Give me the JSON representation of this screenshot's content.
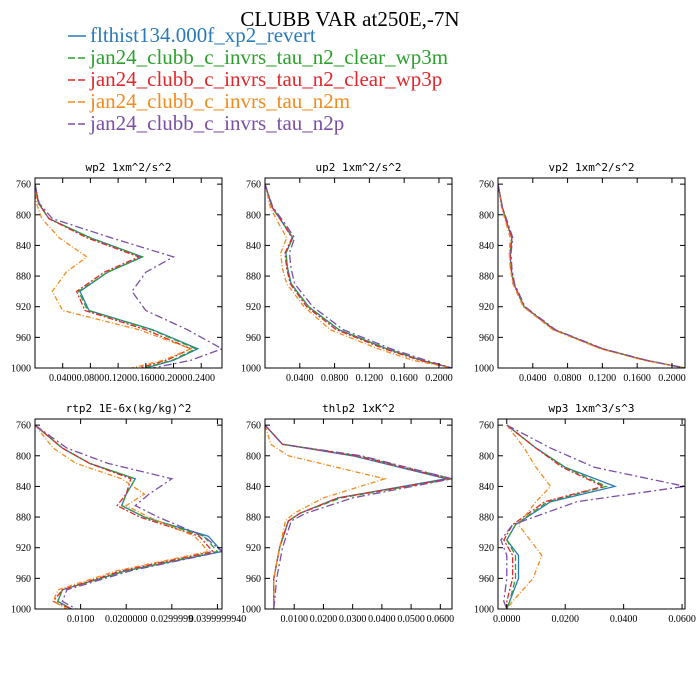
{
  "title": "CLUBB VAR at250E,-7N",
  "legend": [
    {
      "label": "flthist134.000f_xp2_revert",
      "color": "#2a7ab8",
      "dash": ""
    },
    {
      "label": "jan24_clubb_c_invrs_tau_n2_clear_wp3m",
      "color": "#2ca02c",
      "dash": "7,3"
    },
    {
      "label": "jan24_clubb_c_invrs_tau_n2_clear_wp3p",
      "color": "#e0282c",
      "dash": "7,3"
    },
    {
      "label": "jan24_clubb_c_invrs_tau_n2m",
      "color": "#f08c1e",
      "dash": "7,3"
    },
    {
      "label": "jan24_clubb_c_invrs_tau_n2p",
      "color": "#7b4fa6",
      "dash": "7,3"
    }
  ],
  "chart_data": [
    {
      "type": "line",
      "title": "wp2  1xm^2/s^2",
      "xlim": [
        0,
        0.27
      ],
      "ylim": [
        1000,
        752
      ],
      "yticks": [
        760,
        800,
        840,
        880,
        920,
        960,
        1000
      ],
      "xticks": [
        0.04,
        0.08,
        0.12,
        0.16,
        0.2,
        0.24
      ],
      "xticklabels": [
        "0.0400",
        "0.0800",
        "0.1200",
        "0.1600",
        "0.2000",
        "0.2400"
      ],
      "y": [
        760,
        785,
        805,
        830,
        855,
        875,
        900,
        925,
        950,
        975,
        990,
        1000
      ],
      "series": [
        {
          "name": "flthist134.000f_xp2_revert",
          "values": [
            0.0,
            0.005,
            0.02,
            0.08,
            0.155,
            0.105,
            0.065,
            0.078,
            0.17,
            0.235,
            0.2,
            0.16
          ]
        },
        {
          "name": "jan24_clubb_c_invrs_tau_n2_clear_wp3m",
          "values": [
            0.0,
            0.005,
            0.02,
            0.08,
            0.155,
            0.105,
            0.063,
            0.076,
            0.168,
            0.232,
            0.198,
            0.158
          ]
        },
        {
          "name": "jan24_clubb_c_invrs_tau_n2_clear_wp3p",
          "values": [
            0.0,
            0.005,
            0.02,
            0.075,
            0.15,
            0.1,
            0.06,
            0.072,
            0.16,
            0.225,
            0.19,
            0.15
          ]
        },
        {
          "name": "jan24_clubb_c_invrs_tau_n2m",
          "values": [
            0.0,
            0.002,
            0.01,
            0.035,
            0.075,
            0.045,
            0.025,
            0.04,
            0.15,
            0.225,
            0.185,
            0.14
          ]
        },
        {
          "name": "jan24_clubb_c_invrs_tau_n2p",
          "values": [
            0.0,
            0.006,
            0.025,
            0.11,
            0.2,
            0.16,
            0.14,
            0.16,
            0.22,
            0.27,
            0.225,
            0.17
          ]
        }
      ]
    },
    {
      "type": "line",
      "title": "up2  1xm^2/s^2",
      "xlim": [
        0,
        0.215
      ],
      "ylim": [
        1000,
        752
      ],
      "yticks": [
        760,
        800,
        840,
        880,
        920,
        960,
        1000
      ],
      "xticks": [
        0.04,
        0.08,
        0.12,
        0.16,
        0.2
      ],
      "xticklabels": [
        "0.0400",
        "0.0800",
        "0.1200",
        "0.1600",
        "0.2000"
      ],
      "y": [
        760,
        790,
        810,
        830,
        850,
        870,
        890,
        920,
        950,
        975,
        990,
        1000
      ],
      "series": [
        {
          "name": "flthist134.000f_xp2_revert",
          "values": [
            0.0,
            0.008,
            0.02,
            0.032,
            0.024,
            0.026,
            0.03,
            0.05,
            0.085,
            0.14,
            0.18,
            0.215
          ]
        },
        {
          "name": "jan24_clubb_c_invrs_tau_n2_clear_wp3m",
          "values": [
            0.0,
            0.008,
            0.02,
            0.032,
            0.024,
            0.026,
            0.03,
            0.05,
            0.085,
            0.14,
            0.18,
            0.215
          ]
        },
        {
          "name": "jan24_clubb_c_invrs_tau_n2_clear_wp3p",
          "values": [
            0.0,
            0.008,
            0.02,
            0.031,
            0.023,
            0.025,
            0.029,
            0.048,
            0.082,
            0.137,
            0.178,
            0.215
          ]
        },
        {
          "name": "jan24_clubb_c_invrs_tau_n2m",
          "values": [
            0.0,
            0.006,
            0.015,
            0.025,
            0.018,
            0.02,
            0.025,
            0.045,
            0.075,
            0.13,
            0.17,
            0.215
          ]
        },
        {
          "name": "jan24_clubb_c_invrs_tau_n2p",
          "values": [
            0.0,
            0.009,
            0.022,
            0.034,
            0.028,
            0.03,
            0.034,
            0.055,
            0.09,
            0.145,
            0.185,
            0.215
          ]
        }
      ]
    },
    {
      "type": "line",
      "title": "vp2  1xm^2/s^2",
      "xlim": [
        0,
        0.215
      ],
      "ylim": [
        1000,
        752
      ],
      "yticks": [
        760,
        800,
        840,
        880,
        920,
        960,
        1000
      ],
      "xticks": [
        0.04,
        0.08,
        0.12,
        0.16,
        0.2
      ],
      "xticklabels": [
        "0.0400",
        "0.0800",
        "0.1200",
        "0.1600",
        "0.2000"
      ],
      "y": [
        760,
        790,
        810,
        830,
        850,
        870,
        890,
        920,
        950,
        975,
        990,
        1000
      ],
      "series": [
        {
          "name": "flthist134.000f_xp2_revert",
          "values": [
            0.0,
            0.005,
            0.01,
            0.016,
            0.014,
            0.015,
            0.018,
            0.03,
            0.065,
            0.12,
            0.17,
            0.215
          ]
        },
        {
          "name": "jan24_clubb_c_invrs_tau_n2_clear_wp3m",
          "values": [
            0.0,
            0.005,
            0.01,
            0.016,
            0.014,
            0.015,
            0.018,
            0.03,
            0.065,
            0.12,
            0.17,
            0.215
          ]
        },
        {
          "name": "jan24_clubb_c_invrs_tau_n2_clear_wp3p",
          "values": [
            0.0,
            0.005,
            0.01,
            0.016,
            0.014,
            0.015,
            0.018,
            0.03,
            0.064,
            0.119,
            0.169,
            0.215
          ]
        },
        {
          "name": "jan24_clubb_c_invrs_tau_n2m",
          "values": [
            0.0,
            0.004,
            0.009,
            0.014,
            0.013,
            0.014,
            0.017,
            0.029,
            0.063,
            0.118,
            0.168,
            0.215
          ]
        },
        {
          "name": "jan24_clubb_c_invrs_tau_n2p",
          "values": [
            0.0,
            0.005,
            0.011,
            0.017,
            0.015,
            0.016,
            0.019,
            0.031,
            0.066,
            0.121,
            0.171,
            0.215
          ]
        }
      ]
    },
    {
      "type": "line",
      "title": "rtp2  1E-6x(kg/kg)^2",
      "xlim": [
        0,
        0.041
      ],
      "ylim": [
        1000,
        752
      ],
      "yticks": [
        760,
        800,
        840,
        880,
        920,
        960,
        1000
      ],
      "xticks": [
        0.01,
        0.02,
        0.03,
        0.04
      ],
      "xticklabels": [
        "0.0100",
        "0.0200000",
        "0.0299999",
        "0.0399999940"
      ],
      "y": [
        760,
        790,
        810,
        830,
        850,
        865,
        880,
        905,
        925,
        950,
        975,
        990,
        1000
      ],
      "series": [
        {
          "name": "flthist134.000f_xp2_revert",
          "values": [
            0.0,
            0.006,
            0.012,
            0.022,
            0.02,
            0.019,
            0.024,
            0.038,
            0.041,
            0.02,
            0.006,
            0.005,
            0.008
          ]
        },
        {
          "name": "jan24_clubb_c_invrs_tau_n2_clear_wp3m",
          "values": [
            0.0,
            0.006,
            0.012,
            0.022,
            0.02,
            0.019,
            0.024,
            0.037,
            0.04,
            0.02,
            0.006,
            0.005,
            0.008
          ]
        },
        {
          "name": "jan24_clubb_c_invrs_tau_n2_clear_wp3p",
          "values": [
            0.0,
            0.006,
            0.012,
            0.021,
            0.02,
            0.018,
            0.023,
            0.036,
            0.039,
            0.019,
            0.006,
            0.004,
            0.008
          ]
        },
        {
          "name": "jan24_clubb_c_invrs_tau_n2m",
          "values": [
            0.0,
            0.004,
            0.009,
            0.019,
            0.024,
            0.02,
            0.025,
            0.035,
            0.038,
            0.018,
            0.005,
            0.004,
            0.007
          ]
        },
        {
          "name": "jan24_clubb_c_invrs_tau_n2p",
          "values": [
            0.0,
            0.007,
            0.016,
            0.03,
            0.025,
            0.022,
            0.027,
            0.037,
            0.041,
            0.021,
            0.007,
            0.006,
            0.009
          ]
        }
      ]
    },
    {
      "type": "line",
      "title": "thlp2  1xK^2",
      "xlim": [
        0,
        0.064
      ],
      "ylim": [
        1000,
        752
      ],
      "yticks": [
        760,
        800,
        840,
        880,
        920,
        960,
        1000
      ],
      "xticks": [
        0.01,
        0.02,
        0.03,
        0.04,
        0.05,
        0.06
      ],
      "xticklabels": [
        "0.0100",
        "0.0200",
        "0.0300",
        "0.0400",
        "0.0500",
        "0.0600"
      ],
      "y": [
        760,
        785,
        800,
        830,
        855,
        875,
        885,
        920,
        960,
        1000
      ],
      "series": [
        {
          "name": "flthist134.000f_xp2_revert",
          "values": [
            0.0,
            0.006,
            0.03,
            0.062,
            0.025,
            0.012,
            0.008,
            0.005,
            0.003,
            0.003
          ]
        },
        {
          "name": "jan24_clubb_c_invrs_tau_n2_clear_wp3m",
          "values": [
            0.0,
            0.006,
            0.032,
            0.064,
            0.026,
            0.012,
            0.008,
            0.005,
            0.003,
            0.003
          ]
        },
        {
          "name": "jan24_clubb_c_invrs_tau_n2_clear_wp3p",
          "values": [
            0.0,
            0.006,
            0.031,
            0.063,
            0.025,
            0.012,
            0.008,
            0.005,
            0.003,
            0.003
          ]
        },
        {
          "name": "jan24_clubb_c_invrs_tau_n2m",
          "values": [
            0.0,
            0.002,
            0.008,
            0.041,
            0.02,
            0.01,
            0.007,
            0.005,
            0.003,
            0.003
          ]
        },
        {
          "name": "jan24_clubb_c_invrs_tau_n2p",
          "values": [
            0.0,
            0.006,
            0.033,
            0.064,
            0.03,
            0.014,
            0.009,
            0.006,
            0.004,
            0.003
          ]
        }
      ]
    },
    {
      "type": "line",
      "title": "wp3  1xm^3/s^3",
      "xlim": [
        -0.003,
        0.061
      ],
      "ylim": [
        1000,
        752
      ],
      "yticks": [
        760,
        800,
        840,
        880,
        920,
        960,
        1000
      ],
      "xticks": [
        0.0,
        0.02,
        0.04,
        0.06
      ],
      "xticklabels": [
        "0.0000",
        "0.0200",
        "0.0400",
        "0.0600"
      ],
      "y": [
        760,
        790,
        815,
        840,
        860,
        890,
        910,
        930,
        960,
        990,
        1000
      ],
      "series": [
        {
          "name": "flthist134.000f_xp2_revert",
          "values": [
            0.0,
            0.01,
            0.02,
            0.037,
            0.015,
            0.003,
            0.0,
            0.004,
            0.004,
            0.001,
            0.0
          ]
        },
        {
          "name": "jan24_clubb_c_invrs_tau_n2_clear_wp3m",
          "values": [
            0.0,
            0.01,
            0.02,
            0.034,
            0.014,
            0.003,
            0.0,
            0.003,
            0.003,
            0.001,
            0.0
          ]
        },
        {
          "name": "jan24_clubb_c_invrs_tau_n2_clear_wp3p",
          "values": [
            0.0,
            0.01,
            0.019,
            0.033,
            0.013,
            0.002,
            -0.001,
            0.002,
            0.002,
            0.0,
            0.0
          ]
        },
        {
          "name": "jan24_clubb_c_invrs_tau_n2m",
          "values": [
            0.0,
            0.006,
            0.01,
            0.015,
            0.01,
            0.004,
            0.008,
            0.012,
            0.009,
            0.002,
            0.0
          ]
        },
        {
          "name": "jan24_clubb_c_invrs_tau_n2p",
          "values": [
            0.0,
            0.015,
            0.03,
            0.061,
            0.024,
            0.002,
            -0.002,
            0.0,
            0.0,
            -0.001,
            0.0
          ]
        }
      ]
    }
  ]
}
